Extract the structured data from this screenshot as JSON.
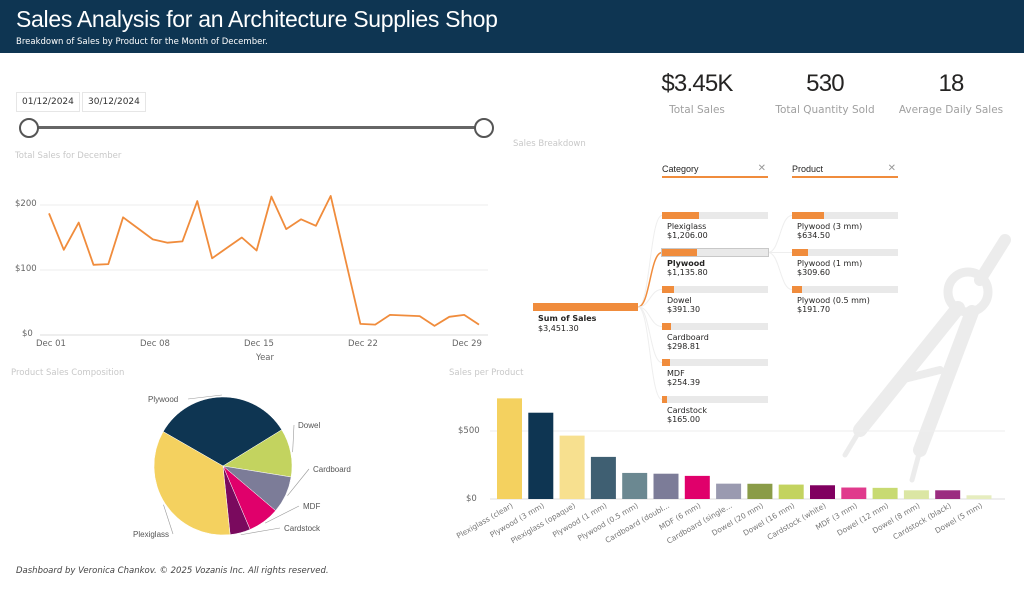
{
  "header": {
    "title": "Sales Analysis for an Architecture  Supplies Shop",
    "subtitle": "Breakdown of Sales by Product for the Month of December."
  },
  "kpis": [
    {
      "value": "$3.45K",
      "label": "Total Sales"
    },
    {
      "value": "530",
      "label": "Total Quantity Sold"
    },
    {
      "value": "18",
      "label": "Average Daily Sales"
    }
  ],
  "date_slicer": {
    "start": "01/12/2024",
    "end": "30/12/2024",
    "range_fraction": [
      0,
      1
    ]
  },
  "colors": {
    "header_bg": "#0e3552",
    "accent": "#f08c3c"
  },
  "decomposition_tree": {
    "title": "Sales Breakdown",
    "root": {
      "label": "Sum of Sales",
      "value": "$3,451.30",
      "amount": 3451.3
    },
    "levels": [
      {
        "header": "Category",
        "close_icon": "close-icon",
        "nodes": [
          {
            "name": "Plexiglass",
            "value": "$1,206.00",
            "amount": 1206.0,
            "selected": false
          },
          {
            "name": "Plywood",
            "value": "$1,135.80",
            "amount": 1135.8,
            "selected": true
          },
          {
            "name": "Dowel",
            "value": "$391.30",
            "amount": 391.3,
            "selected": false
          },
          {
            "name": "Cardboard",
            "value": "$298.81",
            "amount": 298.81,
            "selected": false
          },
          {
            "name": "MDF",
            "value": "$254.39",
            "amount": 254.39,
            "selected": false
          },
          {
            "name": "Cardstock",
            "value": "$165.00",
            "amount": 165.0,
            "selected": false
          }
        ]
      },
      {
        "header": "Product",
        "close_icon": "close-icon",
        "nodes": [
          {
            "name": "Plywood (3 mm)",
            "value": "$634.50",
            "amount": 634.5
          },
          {
            "name": "Plywood (1 mm)",
            "value": "$309.60",
            "amount": 309.6
          },
          {
            "name": "Plywood (0.5 mm)",
            "value": "$191.70",
            "amount": 191.7
          }
        ]
      }
    ]
  },
  "footer": "Dashboard by Veronica Chankov. © 2025 Vozanis Inc. All rights reserved.",
  "chart_data": [
    {
      "type": "line",
      "title": "Total Sales for December",
      "xlabel": "Year",
      "ylabel": "",
      "x": [
        "Dec 01",
        "Dec 02",
        "Dec 03",
        "Dec 04",
        "Dec 05",
        "Dec 06",
        "Dec 07",
        "Dec 08",
        "Dec 09",
        "Dec 10",
        "Dec 11",
        "Dec 12",
        "Dec 13",
        "Dec 14",
        "Dec 15",
        "Dec 16",
        "Dec 17",
        "Dec 18",
        "Dec 19",
        "Dec 20",
        "Dec 21",
        "Dec 22",
        "Dec 23",
        "Dec 24",
        "Dec 25",
        "Dec 26",
        "Dec 27",
        "Dec 28",
        "Dec 29",
        "Dec 30"
      ],
      "x_ticks": [
        "Dec 01",
        "Dec 08",
        "Dec 15",
        "Dec 22",
        "Dec 29"
      ],
      "y_ticks": [
        "$0",
        "$100",
        "$200"
      ],
      "ylim": [
        0,
        215
      ],
      "grid": true,
      "series": [
        {
          "name": "Total Sales",
          "color": "#f08c3c",
          "values": [
            187,
            131,
            173,
            108,
            109,
            181,
            164,
            147,
            142,
            144,
            206,
            118,
            134,
            150,
            130,
            213,
            163,
            178,
            168,
            214,
            115,
            17,
            16,
            31,
            30,
            29,
            14,
            28,
            31,
            16
          ]
        }
      ]
    },
    {
      "type": "pie",
      "title": "Product Sales Composition",
      "categories": [
        "Plywood",
        "Dowel",
        "Cardboard",
        "MDF",
        "Cardstock",
        "Plexiglass"
      ],
      "values": [
        1135.8,
        391.3,
        298.81,
        254.39,
        165.0,
        1206.0
      ],
      "colors": [
        "#0e3552",
        "#c3d35f",
        "#7c7c98",
        "#e0006b",
        "#7a0a5e",
        "#f4d15f"
      ],
      "legend": "none"
    },
    {
      "type": "bar",
      "title": "Sales per Product",
      "xlabel": "",
      "ylabel": "",
      "y_ticks": [
        "$0",
        "$500"
      ],
      "ylim": [
        0,
        780
      ],
      "grid": true,
      "categories": [
        "Plexiglass (clear)",
        "Plywood (3 mm)",
        "Plexiglass (opaque)",
        "Plywood (1 mm)",
        "Plywood (0.5 mm)",
        "Cardboard (doubl...",
        "MDF (6 mm)",
        "Cardboard (single...",
        "Dowel (20 mm)",
        "Dowel (16 mm)",
        "Cardstock (white)",
        "MDF (3 mm)",
        "Dowel (12 mm)",
        "Dowel (8 mm)",
        "Cardstock (black)",
        "Dowel (5 mm)"
      ],
      "values": [
        740,
        634.5,
        466,
        309.6,
        191.7,
        186,
        170,
        112.81,
        112,
        106,
        101,
        84.39,
        82,
        64,
        64,
        27.3
      ],
      "colors": [
        "#f4d15f",
        "#0e3552",
        "#f7e08f",
        "#3f5f72",
        "#6b8891",
        "#7c7c98",
        "#e0006b",
        "#9a9ab0",
        "#8a9c48",
        "#c3d35f",
        "#800060",
        "#e03a8c",
        "#c8da72",
        "#dbe6a4",
        "#9b2c80",
        "#e6edbf"
      ]
    }
  ]
}
